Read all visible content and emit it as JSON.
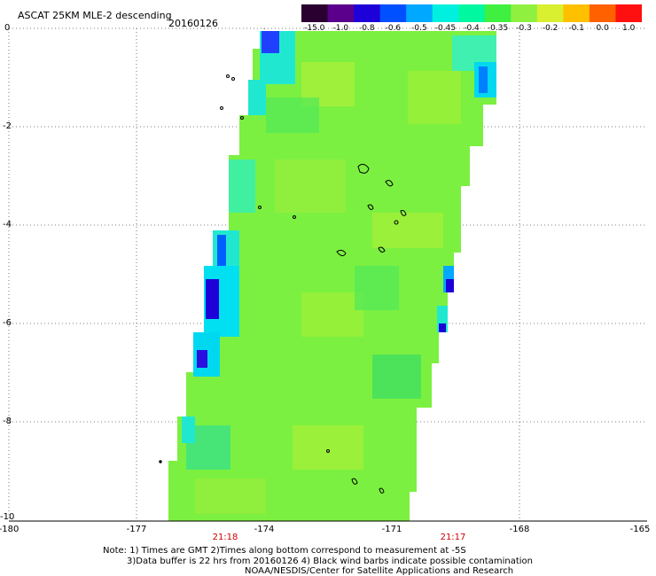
{
  "header": {
    "title": "ASCAT 25KM MLE-2 descending",
    "date": "20160126"
  },
  "colorbar": {
    "labels": [
      "-15.0",
      "-1.0",
      "-0.8",
      "-0.6",
      "-0.5",
      "-0.45",
      "-0.4",
      "-0.35",
      "-0.3",
      "-0.2",
      "-0.1",
      "0.0",
      "1.0"
    ],
    "colors": [
      "#2a0030",
      "#5a008c",
      "#1e00d8",
      "#0050ff",
      "#00a8ff",
      "#00f0e0",
      "#00f8a0",
      "#40f040",
      "#90f040",
      "#d8f030",
      "#ffc000",
      "#ff6000",
      "#ff1010"
    ]
  },
  "axes": {
    "y_ticks": [
      "0",
      "-2",
      "-4",
      "-6",
      "-8",
      "-10"
    ],
    "x_ticks": [
      "-180",
      "-177",
      "-174",
      "-171",
      "-168",
      "-165"
    ]
  },
  "times": [
    "21:18",
    "21:17"
  ],
  "footer": {
    "line1": "Note: 1) Times are GMT 2)Times along bottom correspond to measurement at -5S",
    "line2": "3)Data buffer is 22 hrs from 20160126 4) Black wind barbs indicate possible contamination",
    "line3": "NOAA/NESDIS/Center for Satellite Applications and Research"
  }
}
